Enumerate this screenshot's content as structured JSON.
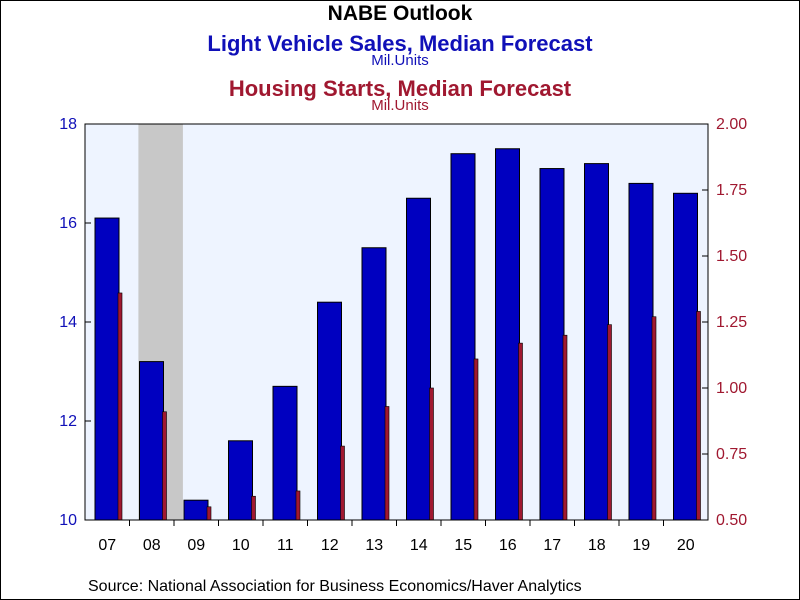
{
  "title": "NABE Outlook",
  "subtitle_left": "Light Vehicle Sales, Median Forecast",
  "unit_left": "Mil.Units",
  "subtitle_right": "Housing Starts, Median Forecast",
  "unit_right": "Mil.Units",
  "source": "Source:  National Association for Business Economics/Haver Analytics",
  "colors": {
    "light_vehicle": "#0000c0",
    "housing": "#a01830",
    "plot_background": "#eef4ff",
    "recession_shading": "#c8c8c8"
  },
  "chart_data": {
    "type": "bar",
    "categories": [
      "07",
      "08",
      "09",
      "10",
      "11",
      "12",
      "13",
      "14",
      "15",
      "16",
      "17",
      "18",
      "19",
      "20"
    ],
    "series": [
      {
        "axis": "left",
        "values": [
          16.1,
          13.2,
          10.4,
          11.6,
          12.7,
          14.4,
          15.5,
          16.5,
          17.4,
          17.5,
          17.1,
          17.2,
          16.8,
          16.6
        ]
      },
      {
        "axis": "right",
        "values": [
          1.36,
          0.91,
          0.55,
          0.59,
          0.61,
          0.78,
          0.93,
          1.0,
          1.11,
          1.17,
          1.2,
          1.24,
          1.27,
          1.29
        ]
      }
    ],
    "y_left": {
      "min": 10,
      "max": 18,
      "ticks": [
        10,
        12,
        14,
        16,
        18
      ]
    },
    "y_right": {
      "min": 0.5,
      "max": 2.0,
      "ticks": [
        "0.50",
        "0.75",
        "1.00",
        "1.25",
        "1.50",
        "1.75",
        "2.00"
      ]
    },
    "shaded_categories": [
      "08"
    ],
    "grid": false,
    "legend": "none"
  }
}
